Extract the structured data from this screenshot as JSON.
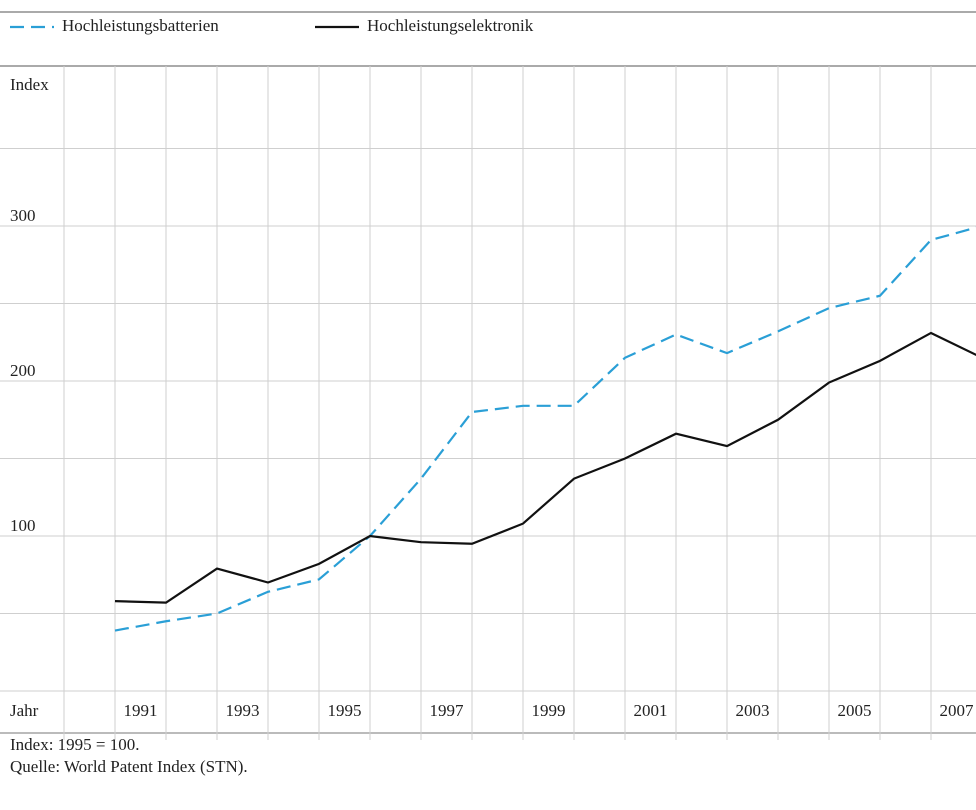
{
  "chart_data": {
    "type": "line",
    "ylabel": "Index",
    "xlabel": "Jahr",
    "x": [
      1990,
      1991,
      1992,
      1993,
      1994,
      1995,
      1996,
      1997,
      1998,
      1999,
      2000,
      2001,
      2002,
      2003,
      2004,
      2005,
      2006,
      2007
    ],
    "series": [
      {
        "name": "Hochleistungsbatterien",
        "color": "#2a9fd6",
        "dashed": true,
        "values": [
          39,
          45,
          50,
          64,
          72,
          100,
          137,
          180,
          184,
          184,
          215,
          230,
          218,
          232,
          247,
          255,
          291,
          300
        ]
      },
      {
        "name": "Hochleistungselektronik",
        "color": "#111111",
        "dashed": false,
        "values": [
          58,
          57,
          79,
          70,
          82,
          100,
          96,
          95,
          108,
          137,
          150,
          166,
          158,
          175,
          199,
          213,
          231,
          215
        ]
      }
    ],
    "ylim": [
      0,
      350
    ],
    "yticks": [
      100,
      200,
      300
    ],
    "ygrid": [
      0,
      50,
      100,
      150,
      200,
      250,
      300,
      350
    ],
    "xlim": [
      1990,
      2007
    ],
    "xticks": [
      1991,
      1993,
      1995,
      1997,
      1999,
      2001,
      2003,
      2005,
      2007
    ],
    "xgrid": [
      1989,
      1990,
      1991,
      1992,
      1993,
      1994,
      1995,
      1996,
      1997,
      1998,
      1999,
      2000,
      2001,
      2002,
      2003,
      2004,
      2005,
      2006,
      2007
    ],
    "notes": [
      "Index: 1995 = 100.",
      "Quelle: World Patent Index (STN)."
    ]
  }
}
